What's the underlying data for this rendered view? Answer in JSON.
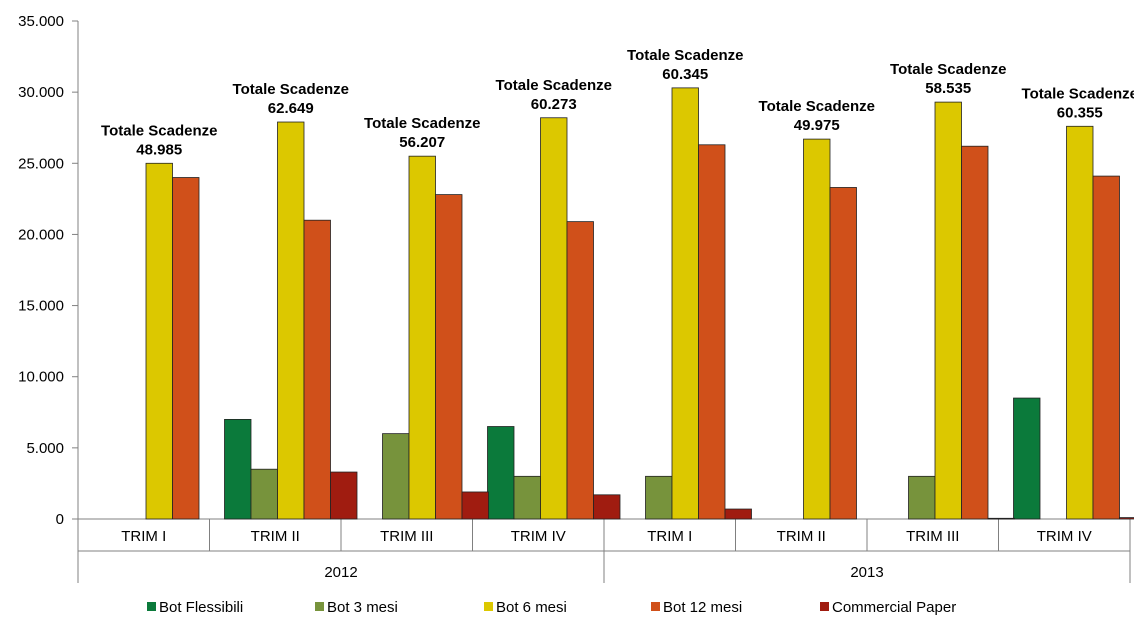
{
  "chart_data": {
    "type": "bar",
    "groups": [
      {
        "year": "2012",
        "categories": [
          "TRIM I",
          "TRIM II",
          "TRIM III",
          "TRIM IV"
        ]
      },
      {
        "year": "2013",
        "categories": [
          "TRIM I",
          "TRIM II",
          "TRIM III",
          "TRIM IV"
        ]
      }
    ],
    "categories": [
      "TRIM I",
      "TRIM II",
      "TRIM III",
      "TRIM IV",
      "TRIM I",
      "TRIM II",
      "TRIM III",
      "TRIM IV"
    ],
    "series": [
      {
        "name": "Bot Flessibili",
        "color": "#0b7a3b",
        "values": [
          0,
          7000,
          0,
          6500,
          0,
          0,
          0,
          8500
        ]
      },
      {
        "name": "Bot 3 mesi",
        "color": "#77933c",
        "values": [
          0,
          3500,
          6000,
          3000,
          3000,
          0,
          3000,
          0
        ]
      },
      {
        "name": "Bot 6 mesi",
        "color": "#dcc800",
        "values": [
          25000,
          27900,
          25500,
          28200,
          30300,
          26700,
          29300,
          27600
        ]
      },
      {
        "name": "Bot 12 mesi",
        "color": "#d0501a",
        "values": [
          24000,
          21000,
          22800,
          20900,
          26300,
          23300,
          26200,
          24100
        ]
      },
      {
        "name": "Commercial Paper",
        "color": "#a01c10",
        "values": [
          0,
          3300,
          1900,
          1700,
          700,
          0,
          50,
          100
        ]
      }
    ],
    "annotations": [
      {
        "label": "Totale Scadenze",
        "value": "48.985"
      },
      {
        "label": "Totale Scadenze",
        "value": "62.649"
      },
      {
        "label": "Totale Scadenze",
        "value": "56.207"
      },
      {
        "label": "Totale Scadenze",
        "value": "60.273"
      },
      {
        "label": "Totale Scadenze",
        "value": "60.345"
      },
      {
        "label": "Totale Scadenze",
        "value": "49.975"
      },
      {
        "label": "Totale Scadenze",
        "value": "58.535"
      },
      {
        "label": "Totale Scadenze",
        "value": "60.355"
      }
    ],
    "yticks": [
      "0",
      "5.000",
      "10.000",
      "15.000",
      "20.000",
      "25.000",
      "30.000",
      "35.000"
    ],
    "ylim": [
      0,
      35000
    ],
    "grid": false,
    "legend_position": "bottom"
  }
}
